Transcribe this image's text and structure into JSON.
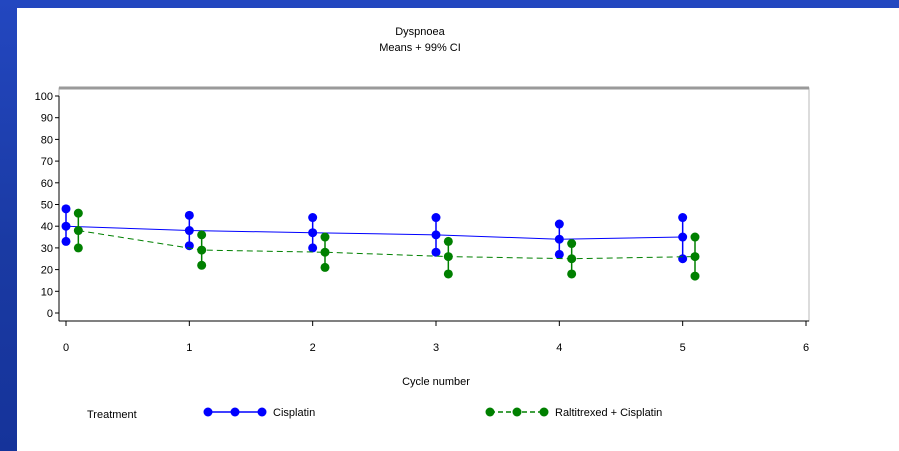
{
  "slide": {
    "background_color": "#1b3ea6",
    "panel_color": "#ffffff"
  },
  "chart_data": {
    "type": "line",
    "title": "Dyspnoea",
    "subtitle": "Means + 99% CI",
    "xlabel": "Cycle number",
    "ylabel": "",
    "xlim": [
      0,
      6
    ],
    "ylim": [
      0,
      100
    ],
    "x_ticks": [
      0,
      1,
      2,
      3,
      4,
      5,
      6
    ],
    "y_ticks": [
      0,
      10,
      20,
      30,
      40,
      50,
      60,
      70,
      80,
      90,
      100
    ],
    "grid": false,
    "legend_title": "Treatment",
    "legend_position": "bottom",
    "series": [
      {
        "name": "Cisplatin",
        "color": "#0000ff",
        "line_style": "solid",
        "offset": 0.0,
        "x": [
          0,
          1,
          2,
          3,
          4,
          5
        ],
        "mean": [
          40,
          38,
          37,
          36,
          34,
          35
        ],
        "lower": [
          33,
          31,
          30,
          28,
          27,
          25
        ],
        "upper": [
          48,
          45,
          44,
          44,
          41,
          44
        ]
      },
      {
        "name": "Raltitrexed + Cisplatin",
        "color": "#008000",
        "line_style": "dashed",
        "offset": 0.1,
        "x": [
          0,
          1,
          2,
          3,
          4,
          5
        ],
        "mean": [
          38,
          29,
          28,
          26,
          25,
          26
        ],
        "lower": [
          30,
          22,
          21,
          18,
          18,
          17
        ],
        "upper": [
          46,
          36,
          35,
          33,
          32,
          35
        ]
      }
    ]
  }
}
